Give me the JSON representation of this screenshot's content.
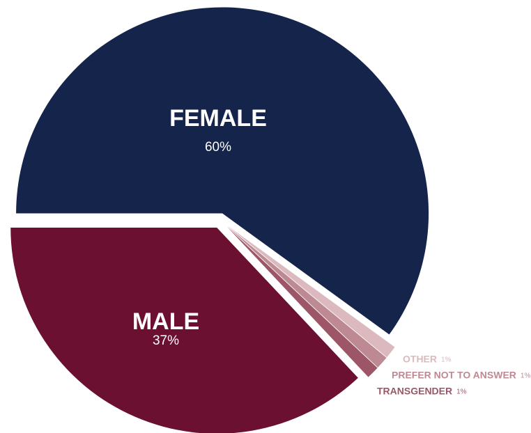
{
  "chart_data": {
    "type": "pie",
    "categories": [
      "FEMALE",
      "OTHER",
      "PREFER NOT TO ANSWER",
      "TRANSGENDER",
      "MALE"
    ],
    "values": [
      60,
      1,
      1,
      1,
      37
    ],
    "value_labels": [
      "60%",
      "1%",
      "1%",
      "1%",
      "37%"
    ],
    "colors": [
      "#14244b",
      "#dcb9be",
      "#bd8a93",
      "#9c5667",
      "#6b1030"
    ]
  }
}
